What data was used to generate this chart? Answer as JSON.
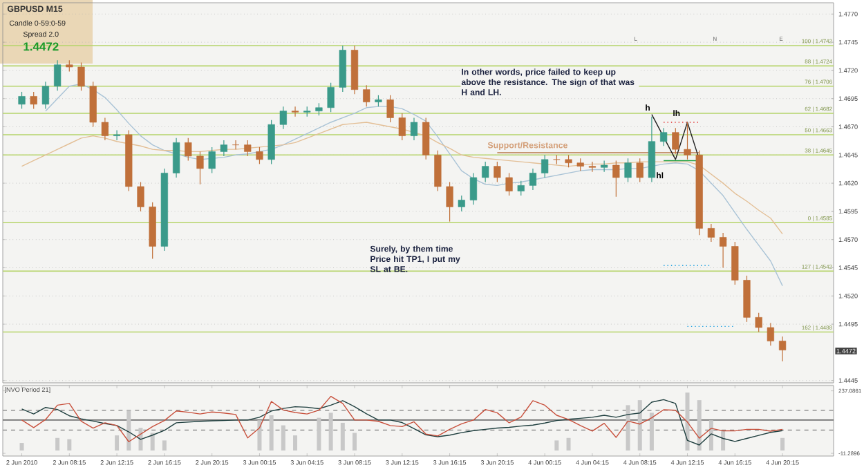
{
  "chart_data": [
    {
      "type": "candlestick",
      "title": "GBPUSD M15",
      "categories": [
        null,
        null,
        null,
        null,
        null,
        null,
        null,
        null,
        null,
        null,
        null,
        null,
        null,
        null,
        null,
        null,
        null,
        null,
        null,
        null,
        null,
        null,
        null,
        null,
        null,
        null,
        null,
        null,
        null,
        null,
        null,
        null,
        null,
        null,
        null,
        null,
        null,
        null,
        null,
        null,
        null,
        null,
        null,
        null,
        null,
        null,
        null,
        null,
        null,
        null,
        null,
        null,
        null,
        null,
        null,
        null,
        null,
        null,
        null,
        null,
        null,
        null,
        null,
        null,
        null
      ],
      "ohlc": [
        [
          1.469,
          1.4701,
          1.4686,
          1.4697
        ],
        [
          1.4697,
          1.4701,
          1.4686,
          1.469
        ],
        [
          1.469,
          1.471,
          1.4686,
          1.4706
        ],
        [
          1.4706,
          1.4729,
          1.4702,
          1.4725
        ],
        [
          1.4725,
          1.4729,
          1.4719,
          1.4723
        ],
        [
          1.4723,
          1.4727,
          1.4702,
          1.4706
        ],
        [
          1.4706,
          1.471,
          1.467,
          1.4674
        ],
        [
          1.4674,
          1.4678,
          1.4658,
          1.4662
        ],
        [
          1.4662,
          1.4667,
          1.4658,
          1.4663
        ],
        [
          1.4663,
          1.4667,
          1.4613,
          1.4617
        ],
        [
          1.4617,
          1.4621,
          1.4595,
          1.4599
        ],
        [
          1.4599,
          1.4603,
          1.4553,
          1.4564
        ],
        [
          1.4564,
          1.4633,
          1.456,
          1.4629
        ],
        [
          1.4629,
          1.466,
          1.4625,
          1.4656
        ],
        [
          1.4656,
          1.466,
          1.464,
          1.4644
        ],
        [
          1.4644,
          1.4648,
          1.4619,
          1.4633
        ],
        [
          1.4633,
          1.4652,
          1.4629,
          1.4648
        ],
        [
          1.4648,
          1.4658,
          1.4644,
          1.4654
        ],
        [
          1.4654,
          1.4658,
          1.465,
          1.4654
        ],
        [
          1.4654,
          1.4658,
          1.4644,
          1.4648
        ],
        [
          1.4648,
          1.4652,
          1.4637,
          1.4641
        ],
        [
          1.4641,
          1.4676,
          1.4637,
          1.4672
        ],
        [
          1.4672,
          1.4688,
          1.4668,
          1.4684
        ],
        [
          1.4684,
          1.4688,
          1.4679,
          1.4683
        ],
        [
          1.4683,
          1.4688,
          1.4679,
          1.4684
        ],
        [
          1.4684,
          1.4691,
          1.468,
          1.4687
        ],
        [
          1.4687,
          1.4709,
          1.4683,
          1.4705
        ],
        [
          1.4705,
          1.4742,
          1.4701,
          1.4738
        ],
        [
          1.4738,
          1.4742,
          1.4699,
          1.4703
        ],
        [
          1.4703,
          1.4707,
          1.4688,
          1.4692
        ],
        [
          1.4692,
          1.4698,
          1.4688,
          1.4694
        ],
        [
          1.4694,
          1.4698,
          1.4674,
          1.4678
        ],
        [
          1.4678,
          1.4682,
          1.4658,
          1.4662
        ],
        [
          1.4662,
          1.4678,
          1.4658,
          1.4674
        ],
        [
          1.4674,
          1.4678,
          1.4641,
          1.4645
        ],
        [
          1.4645,
          1.4649,
          1.4613,
          1.4617
        ],
        [
          1.4617,
          1.4621,
          1.4586,
          1.4599
        ],
        [
          1.4599,
          1.4609,
          1.4595,
          1.4605
        ],
        [
          1.4605,
          1.4629,
          1.4601,
          1.4625
        ],
        [
          1.4625,
          1.4639,
          1.4621,
          1.4635
        ],
        [
          1.4635,
          1.4639,
          1.4621,
          1.4625
        ],
        [
          1.4625,
          1.4629,
          1.4609,
          1.4613
        ],
        [
          1.4613,
          1.4622,
          1.4609,
          1.4618
        ],
        [
          1.4618,
          1.4633,
          1.4614,
          1.4629
        ],
        [
          1.4629,
          1.4645,
          1.4625,
          1.4641
        ],
        [
          1.4641,
          1.4645,
          1.4637,
          1.4641
        ],
        [
          1.4641,
          1.4645,
          1.4634,
          1.4638
        ],
        [
          1.4638,
          1.4642,
          1.4631,
          1.4635
        ],
        [
          1.4635,
          1.4639,
          1.463,
          1.4634
        ],
        [
          1.4634,
          1.464,
          1.463,
          1.4636
        ],
        [
          1.4636,
          1.464,
          1.4608,
          1.4625
        ],
        [
          1.4625,
          1.4642,
          1.4621,
          1.4638
        ],
        [
          1.4638,
          1.4642,
          1.4621,
          1.4625
        ],
        [
          1.4625,
          1.4679,
          1.4621,
          1.4657
        ],
        [
          1.4657,
          1.4669,
          1.4653,
          1.4665
        ],
        [
          1.4665,
          1.4669,
          1.4646,
          1.465
        ],
        [
          1.465,
          1.4674,
          1.4641,
          1.4645
        ],
        [
          1.4645,
          1.4649,
          1.4574,
          1.458
        ],
        [
          1.458,
          1.4584,
          1.4568,
          1.4572
        ],
        [
          1.4572,
          1.4576,
          1.4545,
          1.4564
        ],
        [
          1.4564,
          1.4568,
          1.453,
          1.4534
        ],
        [
          1.4534,
          1.4538,
          1.4497,
          1.4501
        ],
        [
          1.4501,
          1.4505,
          1.4488,
          1.4492
        ],
        [
          1.4492,
          1.4496,
          1.4476,
          1.448
        ],
        [
          1.448,
          1.4484,
          1.4462,
          1.4472
        ]
      ],
      "colors": [
        "#3a9a8a",
        "#c0703a",
        "#3a9a8a",
        "#3a9a8a",
        "#c0703a",
        "#c0703a",
        "#c0703a",
        "#c0703a",
        "#3a9a8a",
        "#c0703a",
        "#c0703a",
        "#c0703a",
        "#3a9a8a",
        "#3a9a8a",
        "#c0703a",
        "#c0703a",
        "#3a9a8a",
        "#3a9a8a",
        "#c0703a",
        "#c0703a",
        "#c0703a",
        "#3a9a8a",
        "#3a9a8a",
        "#c0703a",
        "#3a9a8a",
        "#3a9a8a",
        "#3a9a8a",
        "#3a9a8a",
        "#c0703a",
        "#c0703a",
        "#3a9a8a",
        "#c0703a",
        "#c0703a",
        "#3a9a8a",
        "#c0703a",
        "#c0703a",
        "#c0703a",
        "#3a9a8a",
        "#3a9a8a",
        "#3a9a8a",
        "#c0703a",
        "#c0703a",
        "#3a9a8a",
        "#3a9a8a",
        "#3a9a8a",
        "#c0703a",
        "#c0703a",
        "#c0703a",
        "#c0703a",
        "#3a9a8a",
        "#c0703a",
        "#3a9a8a",
        "#c0703a",
        "#3a9a8a",
        "#3a9a8a",
        "#c0703a",
        "#c0703a",
        "#c0703a",
        "#c0703a",
        "#c0703a",
        "#c0703a",
        "#c0703a",
        "#c0703a",
        "#c0703a",
        "#c0703a"
      ],
      "ylim": [
        1.4443,
        1.478
      ],
      "yticks": [
        1.4445,
        1.4495,
        {
          "value": 1.452,
          "label": "1.4520"
        },
        1.4545,
        {
          "value": 1.457,
          "label": "1.4570"
        },
        1.4595,
        {
          "value": 1.462,
          "label": "1.4620"
        },
        1.4645,
        {
          "value": 1.467,
          "label": "1.4670"
        },
        1.4695,
        {
          "value": 1.472,
          "label": "1.4720"
        },
        1.4745,
        {
          "value": 1.477,
          "label": "1.4770"
        }
      ],
      "grid": "y",
      "tick_labels": "y",
      "series": [
        {
          "type": "line",
          "color": "#a9c3d6",
          "values": [
            null,
            null,
            1.4684,
            1.4695,
            1.4706,
            1.4708,
            1.4703,
            1.4696,
            1.4685,
            1.4673,
            1.4662,
            1.4654,
            1.4649,
            1.4646,
            1.4643,
            1.4641,
            1.4642,
            1.4643,
            1.4645,
            1.4646,
            1.4648,
            1.465,
            1.4654,
            1.4659,
            1.4664,
            1.4669,
            1.4674,
            1.4678,
            1.4682,
            1.4687,
            1.4688,
            1.4688,
            1.4686,
            1.4681,
            1.4675,
            1.4661,
            1.4646,
            1.4631,
            1.4624,
            1.4619,
            1.4618,
            1.462,
            1.4621,
            1.4623,
            1.4625,
            1.4627,
            1.4629,
            1.4631,
            1.4632,
            1.4632,
            1.4632,
            1.4633,
            1.4633,
            1.4635,
            1.4637,
            1.4638,
            1.4637,
            1.4631,
            1.462,
            1.4609,
            1.4594,
            1.4579,
            1.4565,
            1.4551,
            1.4529
          ]
        },
        {
          "type": "line",
          "color": "#e3bf96",
          "values": [
            1.4635,
            1.464,
            1.4645,
            1.465,
            1.4655,
            1.466,
            1.4662,
            1.466,
            1.4657,
            1.4655,
            1.4653,
            1.465,
            1.4649,
            1.4649,
            1.4648,
            1.4648,
            1.4649,
            1.465,
            1.465,
            1.4651,
            1.4652,
            1.4653,
            1.4654,
            1.4656,
            1.466,
            1.4664,
            1.4668,
            1.4672,
            1.4673,
            1.4674,
            1.4672,
            1.467,
            1.4668,
            1.4665,
            1.4662,
            1.4656,
            1.4651,
            1.4645,
            1.4643,
            1.4642,
            1.4641,
            1.464,
            1.4639,
            1.4638,
            1.4637,
            1.4636,
            1.4635,
            1.4636,
            1.4637,
            1.4637,
            1.4638,
            1.4638,
            1.4639,
            1.4639,
            1.4639,
            1.4639,
            1.4639,
            1.4636,
            1.4628,
            1.462,
            1.4611,
            1.4604,
            1.4596,
            1.4589,
            1.4575
          ]
        },
        {
          "type": "line",
          "color": "#b8794a",
          "values": [
            null,
            null,
            null,
            null,
            null,
            null,
            null,
            null,
            null,
            null,
            null,
            null,
            null,
            null,
            null,
            null,
            null,
            null,
            null,
            null,
            null,
            null,
            null,
            null,
            null,
            null,
            null,
            null,
            null,
            null,
            null,
            null,
            null,
            null,
            null,
            null,
            null,
            null,
            null,
            null,
            1.4647,
            1.4647,
            1.4647,
            1.4647,
            1.4647,
            1.4647,
            1.4647,
            1.4647,
            1.4647,
            1.4647,
            1.4647,
            1.4647,
            1.4647,
            1.4647,
            1.4647,
            1.4647,
            1.4647,
            1.4647,
            null,
            null,
            null,
            null,
            null,
            null,
            null
          ]
        },
        {
          "type": "line",
          "color": "#e03030",
          "line_style": "dotted",
          "values": [
            null,
            null,
            null,
            null,
            null,
            null,
            null,
            null,
            null,
            null,
            null,
            null,
            null,
            null,
            null,
            null,
            null,
            null,
            null,
            null,
            null,
            null,
            null,
            null,
            null,
            null,
            null,
            null,
            null,
            null,
            null,
            null,
            null,
            null,
            null,
            null,
            null,
            null,
            null,
            null,
            null,
            null,
            null,
            null,
            null,
            null,
            null,
            null,
            null,
            null,
            null,
            null,
            null,
            null,
            1.4674,
            1.4674,
            1.4674,
            1.4674,
            null,
            null,
            null,
            null,
            null,
            null,
            null
          ]
        },
        {
          "type": "line",
          "color": "#20a040",
          "values": [
            null,
            null,
            null,
            null,
            null,
            null,
            null,
            null,
            null,
            null,
            null,
            null,
            null,
            null,
            null,
            null,
            null,
            null,
            null,
            null,
            null,
            null,
            null,
            null,
            null,
            null,
            null,
            null,
            null,
            null,
            null,
            null,
            null,
            null,
            null,
            null,
            null,
            null,
            null,
            null,
            null,
            null,
            null,
            null,
            null,
            null,
            null,
            null,
            null,
            null,
            null,
            null,
            null,
            null,
            1.464,
            1.464,
            1.464,
            1.464,
            null,
            null,
            null,
            null,
            null,
            null,
            null
          ]
        },
        {
          "type": "line",
          "color": "#20a0e0",
          "line_style": "dotted",
          "values": [
            null,
            null,
            null,
            null,
            null,
            null,
            null,
            null,
            null,
            null,
            null,
            null,
            null,
            null,
            null,
            null,
            null,
            null,
            null,
            null,
            null,
            null,
            null,
            null,
            null,
            null,
            null,
            null,
            null,
            null,
            null,
            null,
            null,
            null,
            null,
            null,
            null,
            null,
            null,
            null,
            null,
            null,
            null,
            null,
            null,
            null,
            null,
            null,
            null,
            null,
            null,
            null,
            null,
            null,
            1.4547,
            1.4547,
            1.4547,
            1.4547,
            1.4547,
            null,
            null,
            null,
            null,
            null,
            null
          ]
        },
        {
          "type": "line",
          "color": "#20a0e0",
          "line_style": "dotted",
          "values": [
            null,
            null,
            null,
            null,
            null,
            null,
            null,
            null,
            null,
            null,
            null,
            null,
            null,
            null,
            null,
            null,
            null,
            null,
            null,
            null,
            null,
            null,
            null,
            null,
            null,
            null,
            null,
            null,
            null,
            null,
            null,
            null,
            null,
            null,
            null,
            null,
            null,
            null,
            null,
            null,
            null,
            null,
            null,
            null,
            null,
            null,
            null,
            null,
            null,
            null,
            null,
            null,
            null,
            null,
            null,
            null,
            1.4493,
            1.4493,
            1.4493,
            1.4493,
            1.4493,
            null,
            null,
            null,
            null
          ]
        },
        {
          "type": "line",
          "color": "#202020",
          "values": [
            null,
            null,
            null,
            null,
            null,
            null,
            null,
            null,
            null,
            null,
            null,
            null,
            null,
            null,
            null,
            null,
            null,
            null,
            null,
            null,
            null,
            null,
            null,
            null,
            null,
            null,
            null,
            null,
            null,
            null,
            null,
            null,
            null,
            null,
            null,
            null,
            null,
            null,
            null,
            null,
            null,
            null,
            null,
            null,
            null,
            null,
            null,
            null,
            null,
            null,
            null,
            null,
            null,
            1.4681,
            1.4661,
            1.4641,
            1.4674,
            1.4641,
            null,
            null,
            null,
            null,
            null,
            null,
            null
          ]
        }
      ],
      "ref_lines": [
        {
          "axis": "y",
          "value": 1.4742,
          "label": "100 | 1.4742",
          "color": "#b5d46a"
        },
        {
          "axis": "y",
          "value": 1.4724,
          "label": "88 | 1.4724",
          "color": "#b5d46a"
        },
        {
          "axis": "y",
          "value": 1.4706,
          "label": "76 | 1.4706",
          "color": "#b5d46a"
        },
        {
          "axis": "y",
          "value": 1.4682,
          "label": "62 | 1.4682",
          "color": "#b5d46a"
        },
        {
          "axis": "y",
          "value": 1.4663,
          "label": "50 | 1.4663",
          "color": "#b5d46a"
        },
        {
          "axis": "y",
          "value": 1.4645,
          "label": "38 | 1.4645",
          "color": "#b5d46a"
        },
        {
          "axis": "y",
          "value": 1.4585,
          "label": "0 | 1.4585",
          "color": "#b5d46a"
        },
        {
          "axis": "y",
          "value": 1.4542,
          "label": "127 | 1.4542",
          "color": "#b5d46a"
        },
        {
          "axis": "y",
          "value": 1.4488,
          "label": "162 | 1.4488",
          "color": "#b5d46a"
        }
      ],
      "annotations": [
        "Candle 0-59:0-59",
        "Spread 2.0",
        "1.4472",
        "In other words, price failed to keep up above the resistance. The sign of that was H and LH.",
        "Surely, by them time Price hit TP1, I put my SL at BE.",
        "Support/Resistance",
        "h",
        "lh",
        "hl",
        "L",
        "N",
        "E",
        "1.4472"
      ]
    },
    {
      "type": "line",
      "title": "[NVO Period 21]",
      "categories": [
        "2 Jun 2010",
        null,
        null,
        null,
        "2 Jun 08:15",
        null,
        null,
        null,
        "2 Jun 12:15",
        null,
        null,
        null,
        "2 Jun 16:15",
        null,
        null,
        null,
        "2 Jun 20:15",
        null,
        null,
        null,
        "3 Jun 00:15",
        null,
        null,
        null,
        "3 Jun 04:15",
        null,
        null,
        null,
        "3 Jun 08:15",
        null,
        null,
        null,
        "3 Jun 12:15",
        null,
        null,
        null,
        "3 Jun 16:15",
        null,
        null,
        null,
        "3 Jun 20:15",
        null,
        null,
        null,
        "4 Jun 00:15",
        null,
        null,
        null,
        "4 Jun 04:15",
        null,
        null,
        null,
        "4 Jun 08:15",
        null,
        null,
        null,
        "4 Jun 12:15",
        null,
        null,
        null,
        "4 Jun 16:15",
        null,
        null,
        null,
        "4 Jun 20:15"
      ],
      "ylim": [
        -22,
        258
      ],
      "yticks": [
        -11.2896,
        237.0861
      ],
      "series": [
        {
          "type": "bar",
          "color": "#c8c8c8",
          "values": [
            30,
            null,
            null,
            50,
            45,
            null,
            null,
            null,
            60,
            160,
            90,
            70,
            40,
            null,
            null,
            null,
            null,
            null,
            null,
            null,
            120,
            140,
            100,
            60,
            null,
            130,
            150,
            110,
            70,
            null,
            null,
            null,
            null,
            null,
            null,
            null,
            null,
            null,
            null,
            null,
            null,
            null,
            null,
            null,
            null,
            40,
            50,
            null,
            null,
            null,
            null,
            180,
            200,
            150,
            null,
            null,
            230,
            200,
            120,
            80,
            null,
            null,
            null,
            null,
            50
          ]
        },
        {
          "type": "line",
          "color": "#1f3f3f",
          "values": [
            165,
            145,
            171,
            163,
            138,
            126,
            117,
            107,
            99,
            74,
            44,
            61,
            80,
            110,
            113,
            116,
            118,
            119,
            121,
            121,
            132,
            157,
            167,
            174,
            172,
            166,
            180,
            198,
            174,
            146,
            121,
            121,
            111,
            87,
            62,
            55,
            61,
            71,
            79,
            84,
            89,
            92,
            97,
            101,
            109,
            119,
            124,
            128,
            132,
            140,
            132,
            143,
            149,
            192,
            202,
            187,
            40,
            22,
            66,
            48,
            36,
            48,
            60,
            72,
            79
          ]
        },
        {
          "type": "line",
          "color": "#c8503c",
          "values": [
            121,
            91,
            123,
            180,
            187,
            116,
            89,
            110,
            99,
            35,
            65,
            95,
            119,
            157,
            152,
            145,
            153,
            149,
            143,
            50,
            90,
            195,
            161,
            151,
            145,
            160,
            215,
            187,
            121,
            121,
            116,
            99,
            95,
            114,
            65,
            58,
            84,
            106,
            121,
            163,
            150,
            110,
            133,
            198,
            180,
            140,
            123,
            99,
            77,
            108,
            52,
            117,
            105,
            130,
            162,
            160,
            113,
            49,
            88,
            78,
            78,
            84,
            84,
            77,
            84
          ]
        }
      ],
      "ref_lines": [
        {
          "axis": "y",
          "value": 121,
          "color": "#707070"
        },
        {
          "axis": "y",
          "value": 160,
          "color": "#909090",
          "line_style": "dashed"
        },
        {
          "axis": "y",
          "value": 81,
          "color": "#909090",
          "line_style": "dashed"
        }
      ]
    }
  ]
}
